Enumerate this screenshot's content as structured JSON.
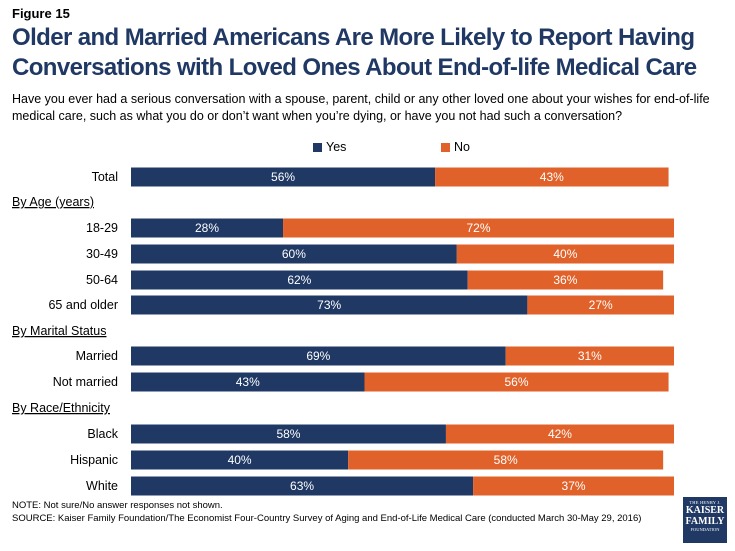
{
  "figure_label": "Figure 15",
  "title_line1": "Older and Married Americans Are More Likely to Report Having",
  "title_line2": "Conversations with Loved Ones About End-of-life Medical Care",
  "subtitle": "Have you ever had a serious conversation with a spouse, parent, child or any other loved one about your wishes for end-of-life medical care, such as what you do or don’t want when you’re dying, or have you not had such a conversation?",
  "footer": {
    "note": "NOTE: Not sure/No answer responses not shown.",
    "source": "SOURCE: Kaiser Family Foundation/The Economist Four-Country Survey of Aging and End-of-Life Medical Care (conducted March 30-May 29, 2016)"
  },
  "logo": {
    "line1": "THE HENRY J.",
    "line2a": "KAISER",
    "line2b": "FAMILY",
    "line3": "FOUNDATION"
  },
  "colors": {
    "yes": "#1f3864",
    "no": "#e0622a",
    "title": "#1f3864"
  },
  "chart_data": {
    "type": "bar",
    "orientation": "horizontal",
    "stacked": true,
    "legend_position": "top",
    "series": [
      {
        "name": "Yes",
        "color": "#1f3864"
      },
      {
        "name": "No",
        "color": "#e0622a"
      }
    ],
    "rows": [
      {
        "kind": "bar",
        "label": "Total",
        "yes": 56,
        "no": 43
      },
      {
        "kind": "header",
        "label": "By Age (years)"
      },
      {
        "kind": "bar",
        "label": "18-29",
        "yes": 28,
        "no": 72
      },
      {
        "kind": "bar",
        "label": "30-49",
        "yes": 60,
        "no": 40
      },
      {
        "kind": "bar",
        "label": "50-64",
        "yes": 62,
        "no": 36
      },
      {
        "kind": "bar",
        "label": "65 and older",
        "yes": 73,
        "no": 27
      },
      {
        "kind": "header",
        "label": "By Marital Status"
      },
      {
        "kind": "bar",
        "label": "Married",
        "yes": 69,
        "no": 31
      },
      {
        "kind": "bar",
        "label": "Not married",
        "yes": 43,
        "no": 56
      },
      {
        "kind": "header",
        "label": "By Race/Ethnicity"
      },
      {
        "kind": "bar",
        "label": "Black",
        "yes": 58,
        "no": 42
      },
      {
        "kind": "bar",
        "label": "Hispanic",
        "yes": 40,
        "no": 58
      },
      {
        "kind": "bar",
        "label": "White",
        "yes": 63,
        "no": 37
      }
    ]
  }
}
